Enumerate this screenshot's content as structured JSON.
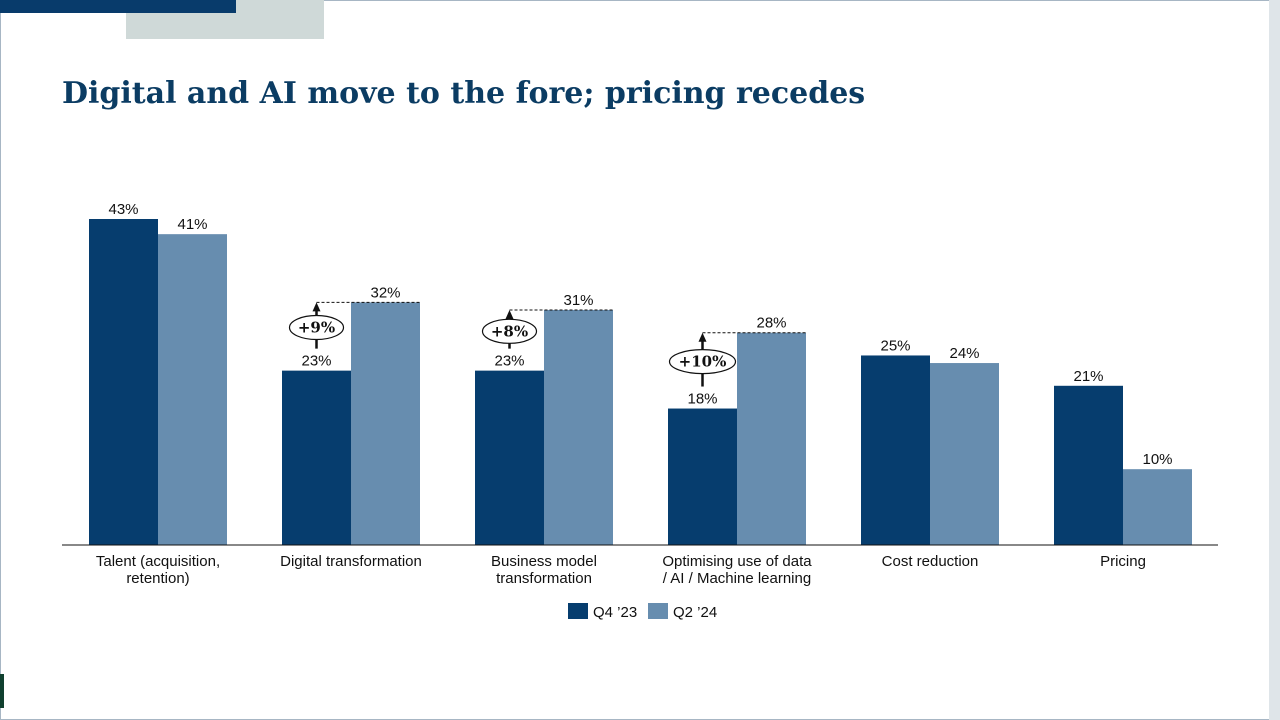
{
  "title": "Digital and AI move to the fore; pricing recedes",
  "colors": {
    "q4_23": "#063d6e",
    "q2_24": "#678daf",
    "title": "#0b3c63"
  },
  "chart_data": {
    "type": "bar",
    "categories": [
      [
        "Talent (acquisition,",
        "retention)"
      ],
      [
        "Digital  transformation"
      ],
      [
        "Business model",
        "transformation"
      ],
      [
        "Optimising  use of data",
        "/ AI / Machine learning"
      ],
      [
        "Cost reduction"
      ],
      [
        "Pricing"
      ]
    ],
    "series": [
      {
        "name": "Q4 ’23",
        "values": [
          43,
          23,
          23,
          18,
          25,
          21
        ],
        "labels": [
          "43%",
          "23%",
          "23%",
          "18%",
          "25%",
          "21%"
        ]
      },
      {
        "name": "Q2 ’24",
        "values": [
          41,
          32,
          31,
          28,
          24,
          10
        ],
        "labels": [
          "41%",
          "32%",
          "31%",
          "28%",
          "24%",
          "10%"
        ]
      }
    ],
    "changes": [
      {
        "category_index": 1,
        "label": "+9%"
      },
      {
        "category_index": 2,
        "label": "+8%"
      },
      {
        "category_index": 3,
        "label": "+10%"
      }
    ],
    "ylim": [
      0,
      43
    ],
    "legend": "bottom",
    "grid": false
  }
}
